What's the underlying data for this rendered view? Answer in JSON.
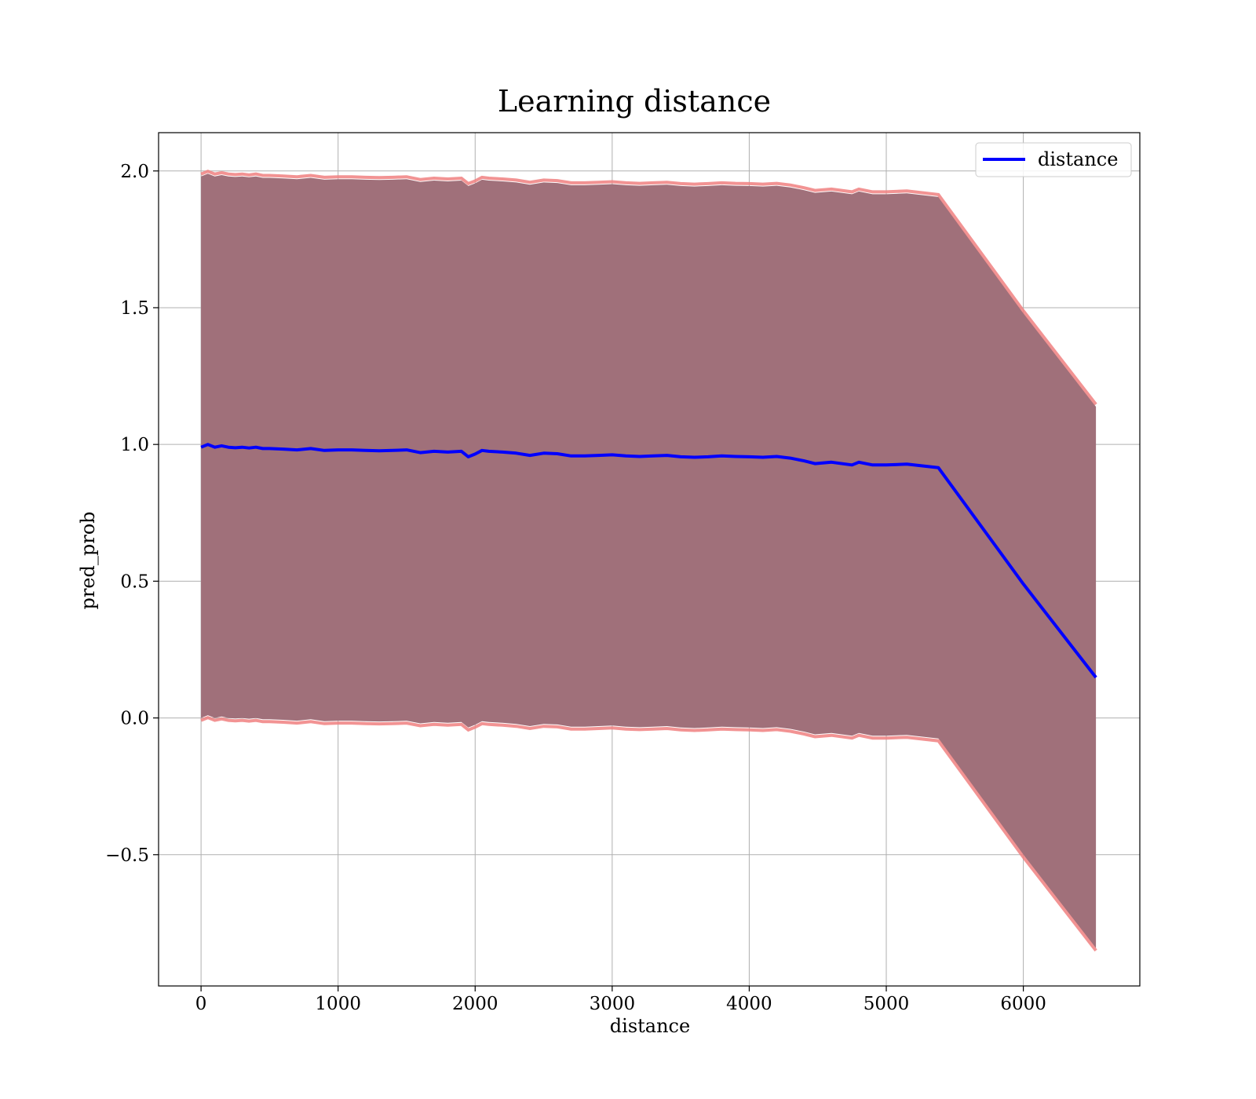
{
  "chart_data": {
    "type": "line",
    "title": "Learning distance",
    "xlabel": "distance",
    "ylabel": "pred_prob",
    "xlim": [
      -310,
      6850
    ],
    "ylim": [
      -0.98,
      2.14
    ],
    "xticks": [
      0,
      1000,
      2000,
      3000,
      4000,
      5000,
      6000
    ],
    "yticks": [
      -0.5,
      0.0,
      0.5,
      1.0,
      1.5,
      2.0
    ],
    "ytick_labels": [
      "−0.5",
      "0.0",
      "0.5",
      "1.0",
      "1.5",
      "2.0"
    ],
    "grid": true,
    "legend": {
      "placement": "top-right",
      "entries": [
        "distance"
      ]
    },
    "colors": {
      "line": "#0000ff",
      "band_fill": "#a0707a",
      "band_edge": "#f08080",
      "grid": "#b0b0b0"
    },
    "series": [
      {
        "name": "distance",
        "x": [
          0,
          50,
          100,
          150,
          200,
          250,
          300,
          350,
          400,
          450,
          500,
          600,
          700,
          800,
          900,
          1000,
          1100,
          1200,
          1300,
          1400,
          1500,
          1600,
          1700,
          1800,
          1900,
          1950,
          2000,
          2050,
          2100,
          2200,
          2300,
          2400,
          2500,
          2600,
          2700,
          2800,
          2900,
          3000,
          3100,
          3200,
          3300,
          3400,
          3500,
          3600,
          3700,
          3800,
          3900,
          4000,
          4100,
          4200,
          4300,
          4400,
          4480,
          4600,
          4750,
          4800,
          4900,
          5000,
          5150,
          5380,
          6000,
          6530
        ],
        "y": [
          0.99,
          1.0,
          0.99,
          0.995,
          0.99,
          0.988,
          0.99,
          0.987,
          0.99,
          0.985,
          0.985,
          0.983,
          0.98,
          0.985,
          0.978,
          0.98,
          0.98,
          0.978,
          0.977,
          0.978,
          0.98,
          0.97,
          0.975,
          0.972,
          0.975,
          0.955,
          0.965,
          0.978,
          0.975,
          0.972,
          0.968,
          0.96,
          0.968,
          0.966,
          0.958,
          0.958,
          0.96,
          0.962,
          0.958,
          0.956,
          0.958,
          0.96,
          0.955,
          0.953,
          0.955,
          0.958,
          0.956,
          0.955,
          0.953,
          0.956,
          0.95,
          0.94,
          0.93,
          0.935,
          0.925,
          0.935,
          0.925,
          0.925,
          0.928,
          0.915,
          0.49,
          0.148
        ],
        "upper": [
          1.98,
          1.99,
          1.98,
          1.985,
          1.98,
          1.978,
          1.98,
          1.977,
          1.98,
          1.975,
          1.975,
          1.973,
          1.97,
          1.975,
          1.968,
          1.97,
          1.97,
          1.968,
          1.967,
          1.968,
          1.97,
          1.96,
          1.965,
          1.962,
          1.965,
          1.945,
          1.955,
          1.968,
          1.965,
          1.962,
          1.958,
          1.95,
          1.958,
          1.956,
          1.948,
          1.948,
          1.95,
          1.952,
          1.948,
          1.946,
          1.948,
          1.95,
          1.945,
          1.943,
          1.945,
          1.948,
          1.946,
          1.945,
          1.943,
          1.946,
          1.94,
          1.93,
          1.92,
          1.925,
          1.915,
          1.925,
          1.915,
          1.915,
          1.918,
          1.905,
          1.48,
          1.138
        ],
        "lower": [
          0.0,
          0.01,
          0.0,
          0.005,
          0.0,
          -0.002,
          0.0,
          -0.003,
          0.0,
          -0.005,
          -0.005,
          -0.007,
          -0.01,
          -0.005,
          -0.012,
          -0.01,
          -0.01,
          -0.012,
          -0.013,
          -0.012,
          -0.01,
          -0.02,
          -0.015,
          -0.018,
          -0.015,
          -0.035,
          -0.025,
          -0.012,
          -0.015,
          -0.018,
          -0.022,
          -0.03,
          -0.022,
          -0.024,
          -0.032,
          -0.032,
          -0.03,
          -0.028,
          -0.032,
          -0.034,
          -0.032,
          -0.03,
          -0.035,
          -0.037,
          -0.035,
          -0.032,
          -0.034,
          -0.035,
          -0.037,
          -0.034,
          -0.04,
          -0.05,
          -0.06,
          -0.055,
          -0.065,
          -0.055,
          -0.065,
          -0.065,
          -0.062,
          -0.075,
          -0.5,
          -0.842
        ]
      }
    ]
  }
}
